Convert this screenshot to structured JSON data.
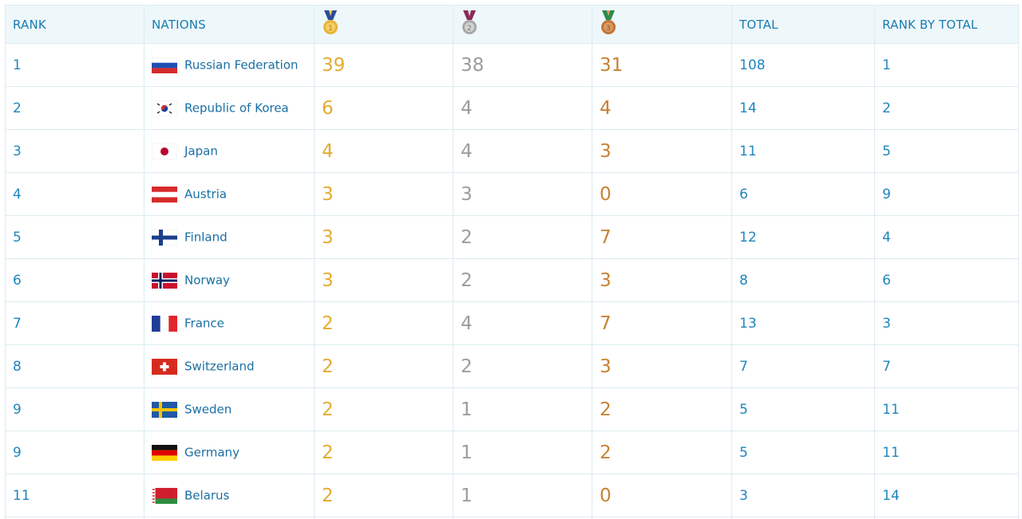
{
  "headers": {
    "rank": "RANK",
    "nations": "NATIONS",
    "gold_icon": "gold-medal-icon",
    "silver_icon": "silver-medal-icon",
    "bronze_icon": "bronze-medal-icon",
    "total": "TOTAL",
    "rank_by_total": "RANK BY TOTAL"
  },
  "colors": {
    "header_text": "#1a7cb0",
    "gold": "#e3ac31",
    "silver": "#9c9c9c",
    "bronze": "#c78234",
    "link": "#1f86bd"
  },
  "rows": [
    {
      "rank": "1",
      "nation": "Russian Federation",
      "flag": "russia-flag-icon",
      "gold": "39",
      "silver": "38",
      "bronze": "31",
      "total": "108",
      "rank_by_total": "1"
    },
    {
      "rank": "2",
      "nation": "Republic of Korea",
      "flag": "korea-flag-icon",
      "gold": "6",
      "silver": "4",
      "bronze": "4",
      "total": "14",
      "rank_by_total": "2"
    },
    {
      "rank": "3",
      "nation": "Japan",
      "flag": "japan-flag-icon",
      "gold": "4",
      "silver": "4",
      "bronze": "3",
      "total": "11",
      "rank_by_total": "5"
    },
    {
      "rank": "4",
      "nation": "Austria",
      "flag": "austria-flag-icon",
      "gold": "3",
      "silver": "3",
      "bronze": "0",
      "total": "6",
      "rank_by_total": "9"
    },
    {
      "rank": "5",
      "nation": "Finland",
      "flag": "finland-flag-icon",
      "gold": "3",
      "silver": "2",
      "bronze": "7",
      "total": "12",
      "rank_by_total": "4"
    },
    {
      "rank": "6",
      "nation": "Norway",
      "flag": "norway-flag-icon",
      "gold": "3",
      "silver": "2",
      "bronze": "3",
      "total": "8",
      "rank_by_total": "6"
    },
    {
      "rank": "7",
      "nation": "France",
      "flag": "france-flag-icon",
      "gold": "2",
      "silver": "4",
      "bronze": "7",
      "total": "13",
      "rank_by_total": "3"
    },
    {
      "rank": "8",
      "nation": "Switzerland",
      "flag": "switzerland-flag-icon",
      "gold": "2",
      "silver": "2",
      "bronze": "3",
      "total": "7",
      "rank_by_total": "7"
    },
    {
      "rank": "9",
      "nation": "Sweden",
      "flag": "sweden-flag-icon",
      "gold": "2",
      "silver": "1",
      "bronze": "2",
      "total": "5",
      "rank_by_total": "11"
    },
    {
      "rank": "9",
      "nation": "Germany",
      "flag": "germany-flag-icon",
      "gold": "2",
      "silver": "1",
      "bronze": "2",
      "total": "5",
      "rank_by_total": "11"
    },
    {
      "rank": "11",
      "nation": "Belarus",
      "flag": "belarus-flag-icon",
      "gold": "2",
      "silver": "1",
      "bronze": "0",
      "total": "3",
      "rank_by_total": "14"
    }
  ]
}
